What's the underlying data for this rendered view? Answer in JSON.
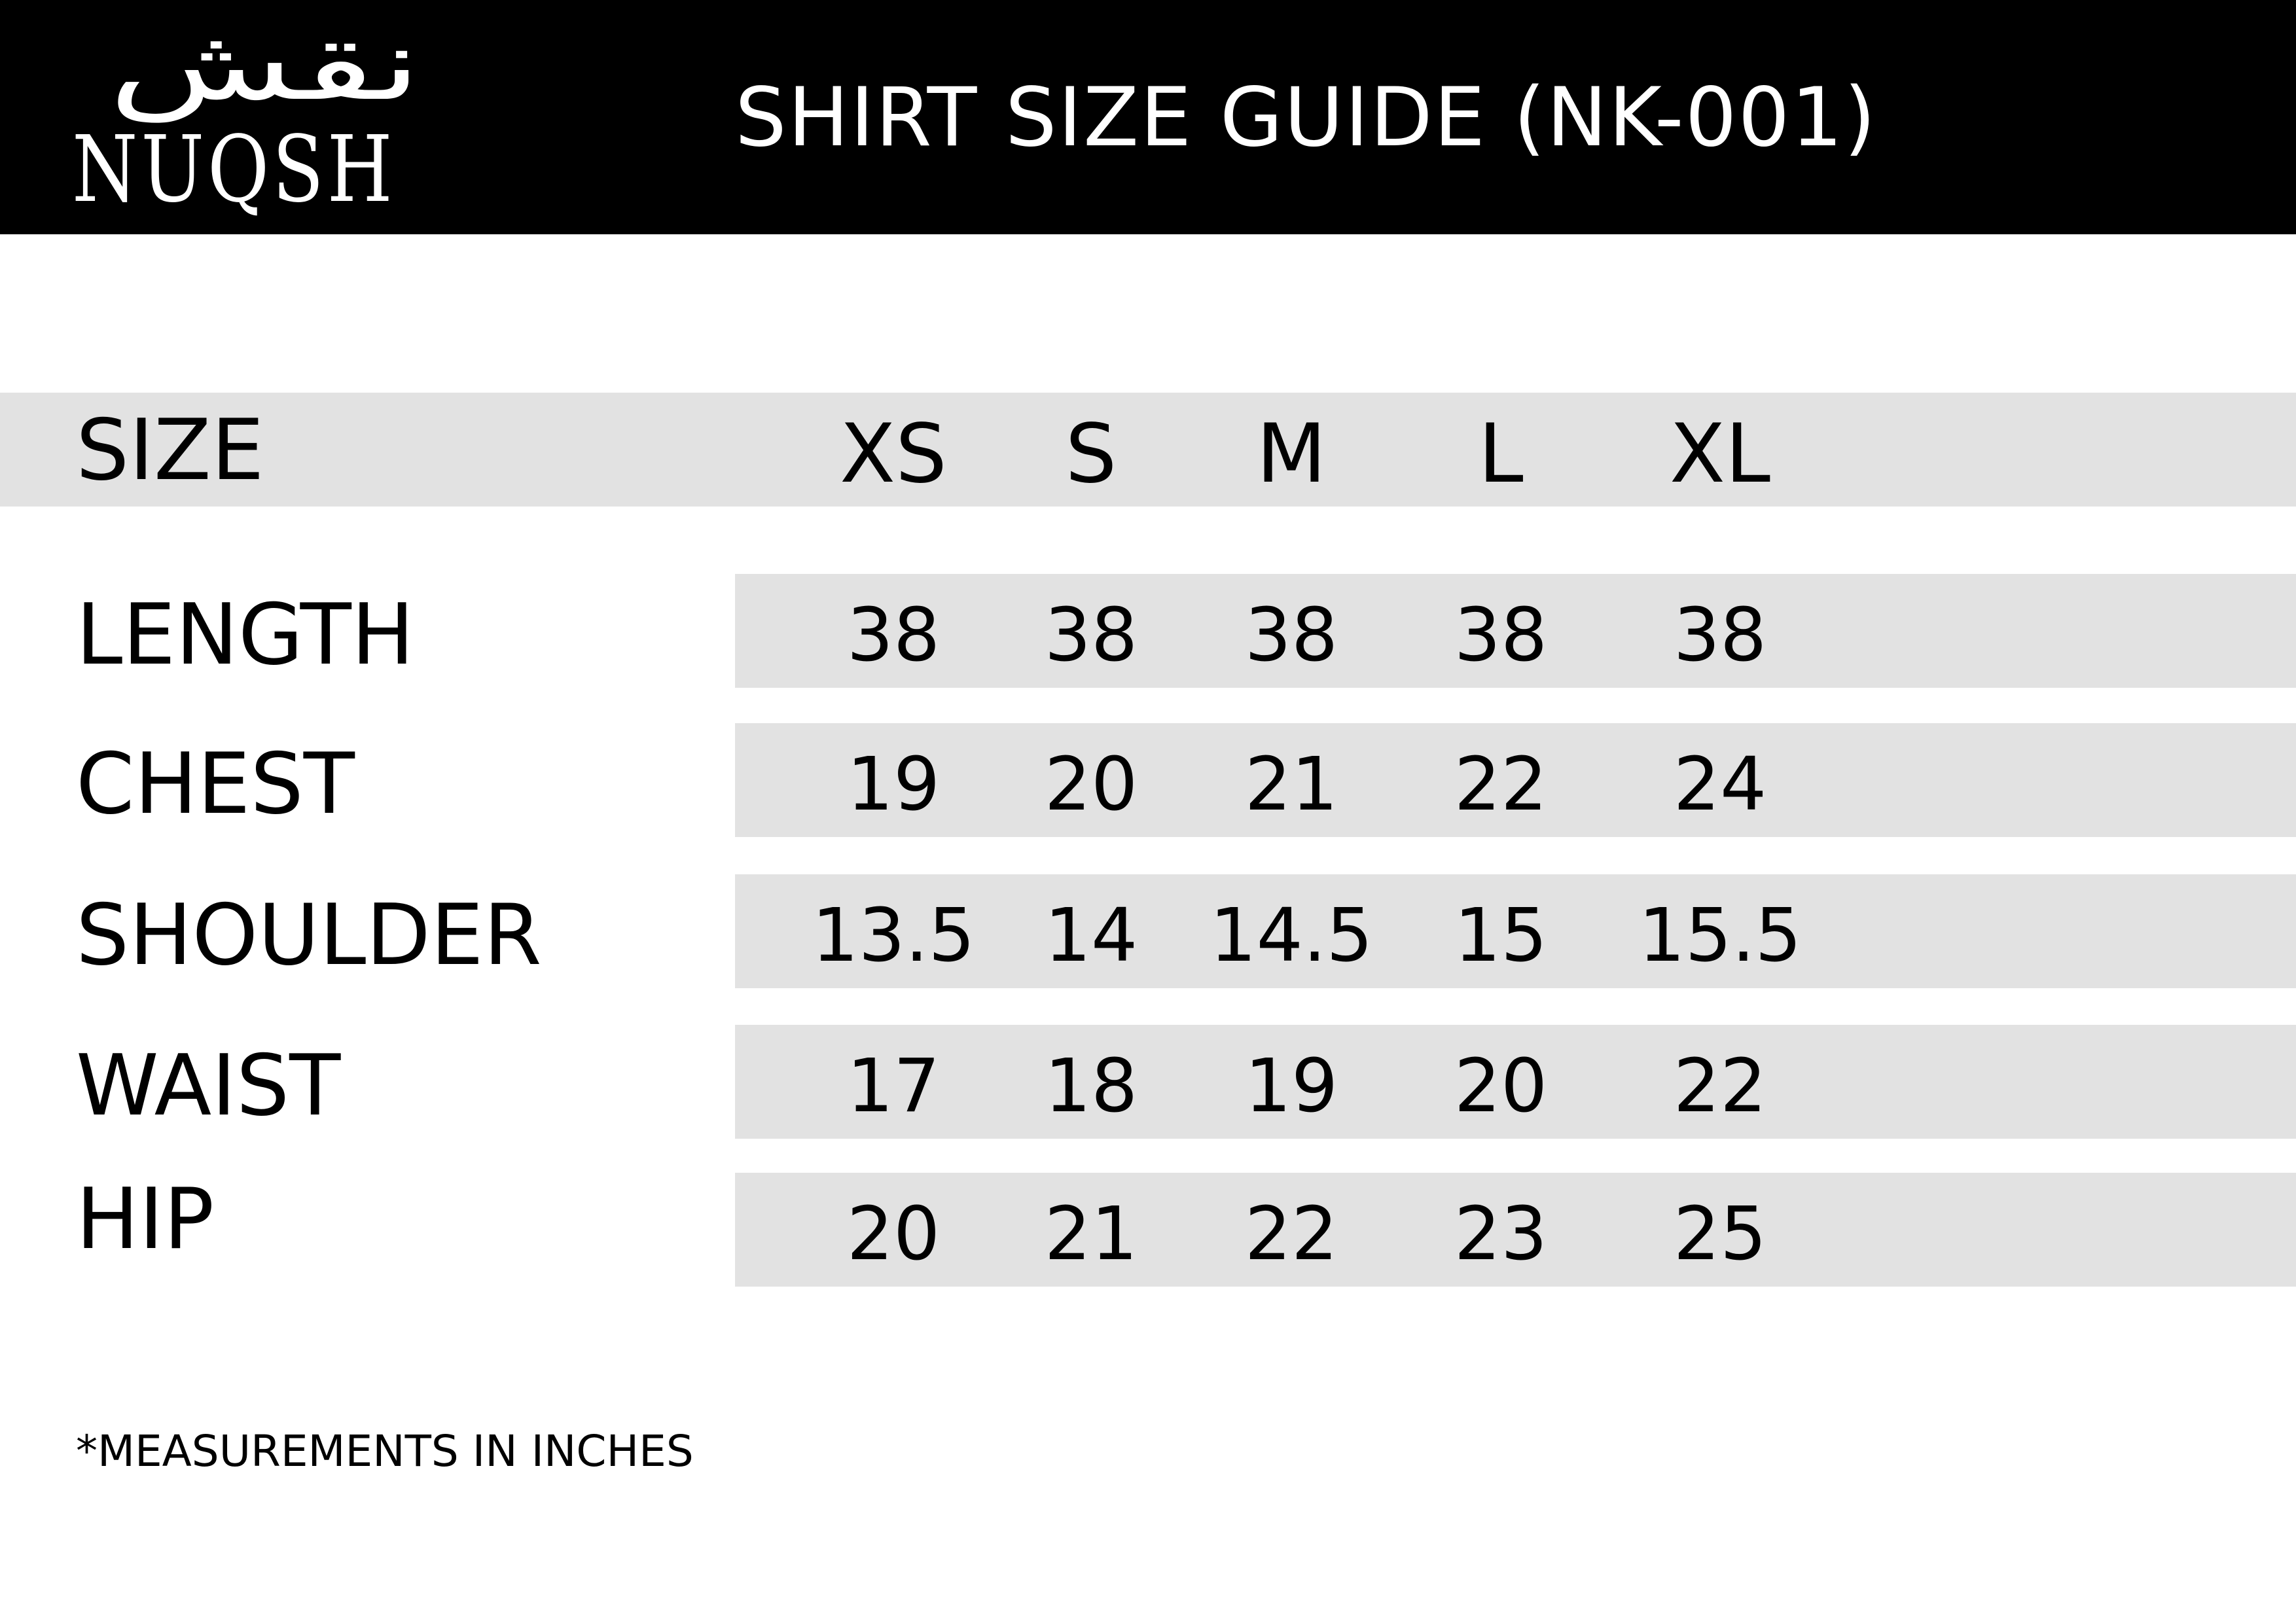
{
  "brand": {
    "name_latin": "NUQSH",
    "name_arabic": "نقش"
  },
  "header": {
    "title": "SHIRT SIZE GUIDE (NK-001)"
  },
  "table": {
    "size_label": "SIZE",
    "sizes": [
      "XS",
      "S",
      "M",
      "L",
      "XL"
    ],
    "rows": [
      {
        "label": "LENGTH",
        "values": [
          "38",
          "38",
          "38",
          "38",
          "38"
        ]
      },
      {
        "label": "CHEST",
        "values": [
          "19",
          "20",
          "21",
          "22",
          "24"
        ]
      },
      {
        "label": "SHOULDER",
        "values": [
          "13.5",
          "14",
          "14.5",
          "15",
          "15.5"
        ]
      },
      {
        "label": "WAIST",
        "values": [
          "17",
          "18",
          "19",
          "20",
          "22"
        ]
      },
      {
        "label": "HIP",
        "values": [
          "20",
          "21",
          "22",
          "23",
          "25"
        ]
      }
    ]
  },
  "footnote": "*MEASUREMENTS IN INCHES",
  "colors": {
    "header_bg": "#000000",
    "band_bg": "#e2e2e2",
    "text": "#000000"
  }
}
